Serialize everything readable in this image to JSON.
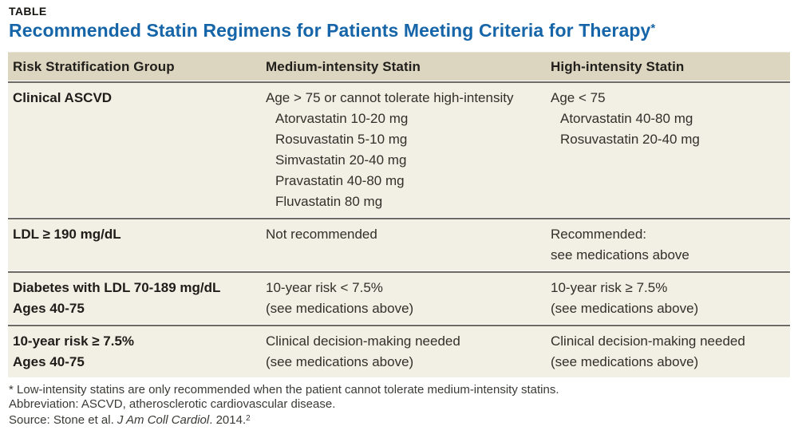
{
  "kicker": "TABLE",
  "title": {
    "text": "Recommended Statin Regimens for Patients Meeting Criteria for Therapy",
    "asterisk": "*"
  },
  "colors": {
    "title_blue": "#1565a8",
    "header_bg": "#dcd5c0",
    "body_bg": "#f2efe5",
    "divider_gray": "#6e6b64",
    "text_dark": "#1f1d19"
  },
  "table": {
    "columns": [
      "Risk Stratification Group",
      "Medium-intensity Statin",
      "High-intensity Statin"
    ],
    "rows": [
      {
        "group": [
          "Clinical ASCVD"
        ],
        "medium": [
          "Age > 75 or cannot tolerate high-intensity",
          "Atorvastatin 10-20 mg",
          "Rosuvastatin 5-10 mg",
          "Simvastatin 20-40 mg",
          "Pravastatin 40-80 mg",
          "Fluvastatin 80 mg"
        ],
        "high": [
          "Age < 75",
          "Atorvastatin 40-80 mg",
          "Rosuvastatin 20-40 mg"
        ]
      },
      {
        "group": [
          "LDL ≥ 190 mg/dL"
        ],
        "medium": [
          "Not recommended"
        ],
        "high": [
          "Recommended:",
          "see medications above"
        ]
      },
      {
        "group": [
          "Diabetes with LDL 70-189 mg/dL",
          "Ages 40-75"
        ],
        "medium": [
          "10-year risk < 7.5%",
          "(see medications above)"
        ],
        "high": [
          "10-year risk ≥ 7.5%",
          "(see medications above)"
        ]
      },
      {
        "group": [
          "10-year risk ≥ 7.5%",
          "Ages 40-75"
        ],
        "medium": [
          "Clinical decision-making needed",
          "(see medications above)"
        ],
        "high": [
          "Clinical decision-making needed",
          "(see medications above)"
        ]
      }
    ]
  },
  "footnotes": {
    "asterisk_note": "* Low-intensity statins are only recommended when the patient cannot tolerate medium-intensity statins.",
    "abbreviation": "Abbreviation: ASCVD, atherosclerotic cardiovascular disease.",
    "source_prefix": "Source: Stone et al. ",
    "source_journal": "J Am Coll Cardiol",
    "source_suffix": ". 2014.",
    "source_superscript": "2"
  }
}
